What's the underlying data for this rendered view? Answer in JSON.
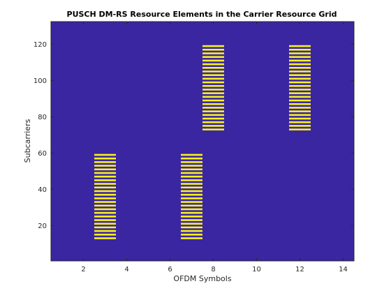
{
  "chart_data": {
    "type": "heatmap",
    "title": "PUSCH DM-RS Resource Elements in the Carrier Resource Grid",
    "xlabel": "OFDM Symbols",
    "ylabel": "Subcarriers",
    "xlim": [
      0.5,
      14.5
    ],
    "ylim": [
      0.5,
      132.5
    ],
    "xticks": [
      2,
      4,
      6,
      8,
      10,
      12,
      14
    ],
    "yticks": [
      20,
      40,
      60,
      80,
      100,
      120
    ],
    "grid": false,
    "colors": {
      "background": "#3a26a0",
      "dmrs": "#f9f221"
    },
    "dmrs_blocks": [
      {
        "symbol": 3,
        "subcarrier_range": [
          13,
          60
        ]
      },
      {
        "symbol": 7,
        "subcarrier_range": [
          13,
          60
        ]
      },
      {
        "symbol": 8,
        "subcarrier_range": [
          73,
          120
        ]
      },
      {
        "symbol": 12,
        "subcarrier_range": [
          73,
          120
        ]
      }
    ],
    "subcarrier_pattern": "every other subcarrier"
  }
}
